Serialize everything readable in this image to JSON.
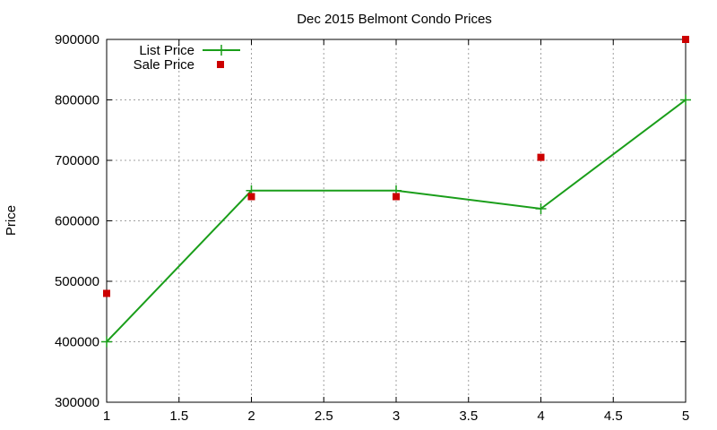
{
  "chart_data": {
    "type": "line",
    "title": "Dec 2015 Belmont Condo Prices",
    "xlabel": "",
    "ylabel": "Price",
    "xlim": [
      1,
      5
    ],
    "ylim": [
      300000,
      900000
    ],
    "x_ticks": [
      "1",
      "1.5",
      "2",
      "2.5",
      "3",
      "3.5",
      "4",
      "4.5",
      "5"
    ],
    "y_ticks": [
      "300000",
      "400000",
      "500000",
      "600000",
      "700000",
      "800000",
      "900000"
    ],
    "grid": true,
    "legend_position": "top-left",
    "series": [
      {
        "name": "List Price",
        "kind": "line-with-plus-markers",
        "color": "#1a9e1a",
        "x": [
          1,
          2,
          3,
          4,
          5
        ],
        "y": [
          400000,
          650000,
          650000,
          620000,
          800000
        ]
      },
      {
        "name": "Sale Price",
        "kind": "square-markers",
        "color": "#cc0000",
        "x": [
          1,
          2,
          3,
          4,
          5
        ],
        "y": [
          480000,
          640000,
          640000,
          705000,
          900000
        ]
      }
    ]
  }
}
